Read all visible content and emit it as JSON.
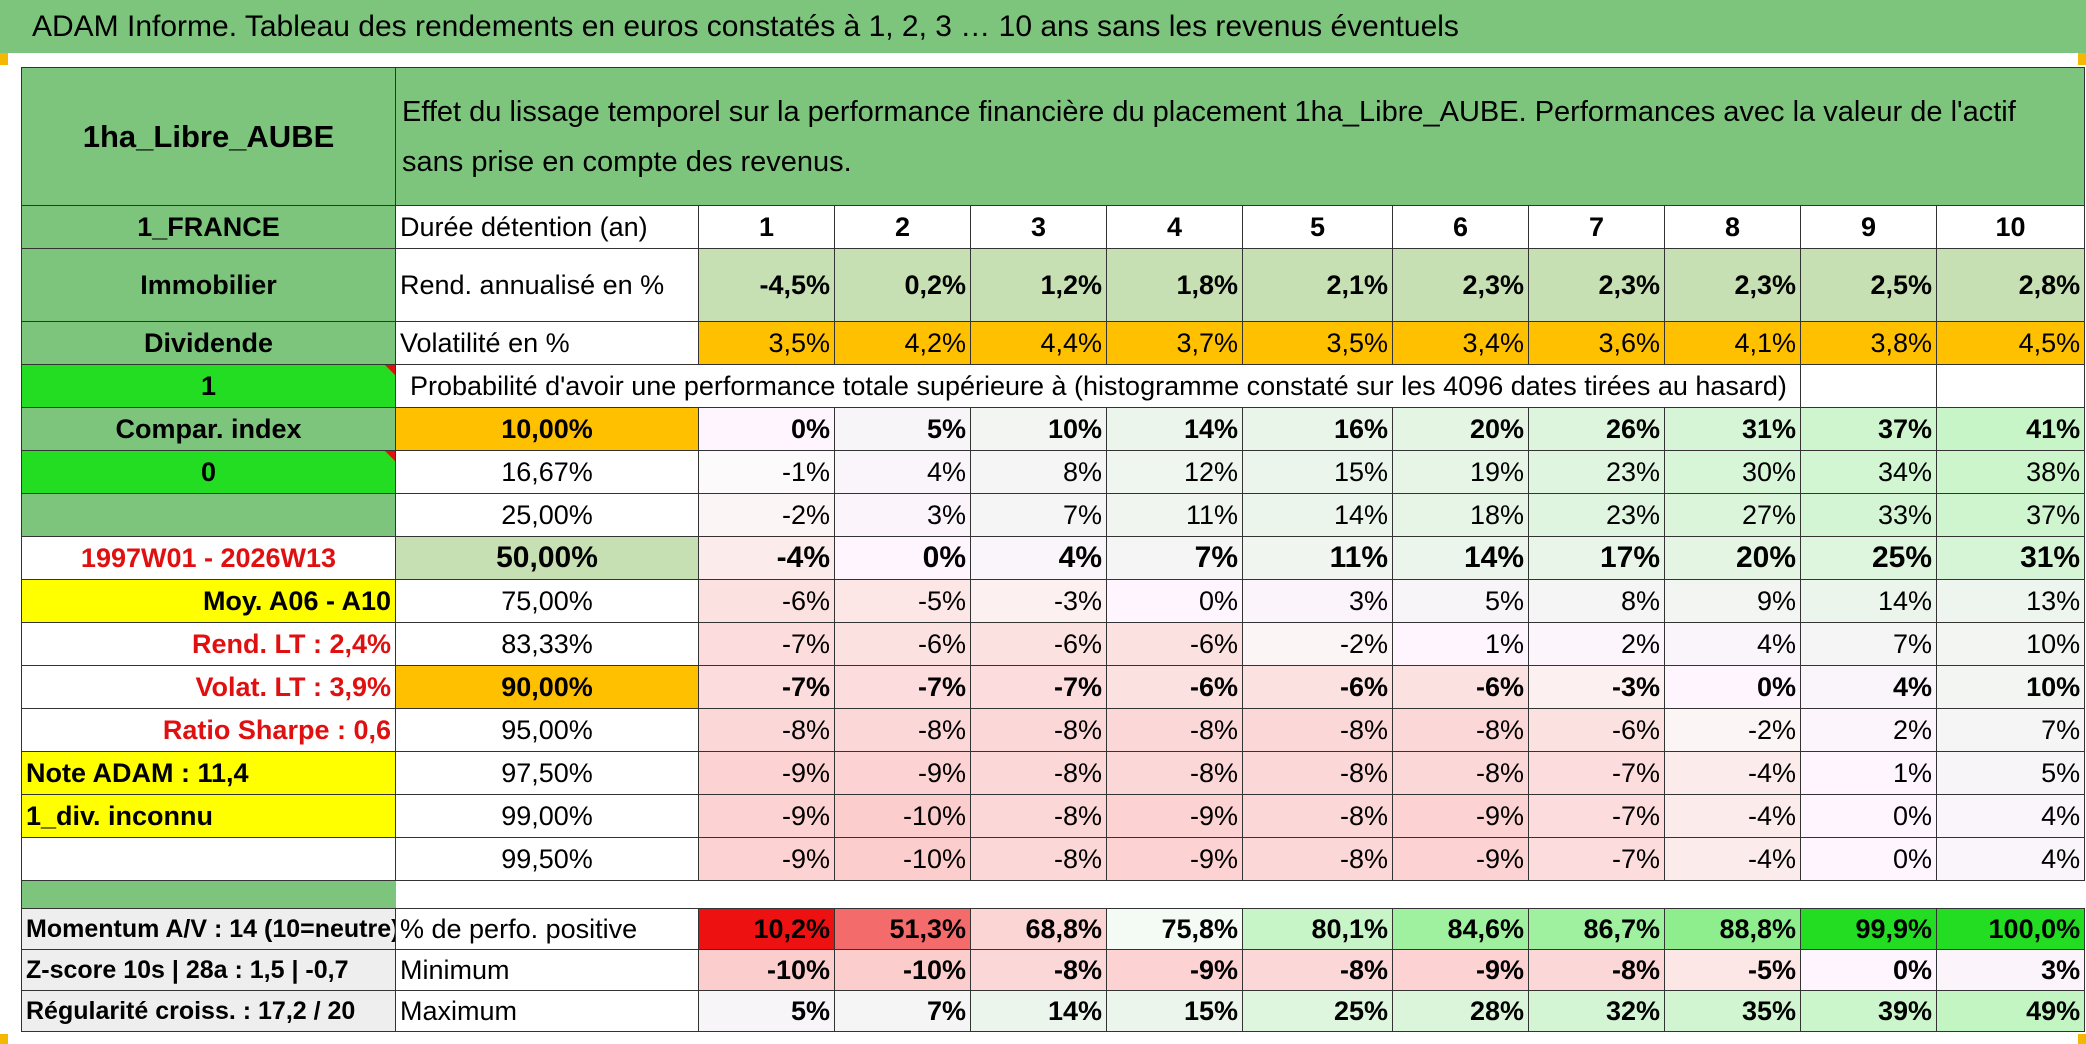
{
  "banner": "ADAM Informe. Tableau des rendements en euros constatés à 1, 2, 3 … 10 ans sans les revenus éventuels",
  "asset_name": "1ha_Libre_AUBE",
  "title": "Effet du lissage temporel sur la performance financière du placement 1ha_Libre_AUBE. Performances avec la valeur de l'actif sans prise en compte des revenus.",
  "left": {
    "country": "1_FRANCE",
    "category": "Immobilier",
    "dividend": "Dividende",
    "flag1": "1",
    "compar": "Compar. index",
    "flag0": "0",
    "period": "1997W01 - 2026W13",
    "moy": "Moy. A06 - A10",
    "rend_lt": "Rend. LT :   2,4%",
    "volat_lt": "Volat. LT :   3,9%",
    "sharpe": "Ratio Sharpe :   0,6",
    "note": "Note ADAM : 11,4",
    "div": "1_div. inconnu",
    "momentum": "Momentum A/V : 14 (10=neutre)",
    "zscore": "Z-score 10s | 28a : 1,5 | -0,7",
    "regularite": "Régularité croiss. : 17,2 / 20"
  },
  "labels": {
    "duration": "Durée détention (an)",
    "rend": "Rend. annualisé en %",
    "volat": "Volatilité en %",
    "proba": "Probabilité d'avoir une performance totale supérieure à (histogramme constaté sur les 4096 dates tirées au hasard)",
    "positive": "% de perfo. positive",
    "minimum": "Minimum",
    "maximum": "Maximum"
  },
  "years": [
    "1",
    "2",
    "3",
    "4",
    "5",
    "6",
    "7",
    "8",
    "9",
    "10"
  ],
  "rend": [
    "-4,5%",
    "0,2%",
    "1,2%",
    "1,8%",
    "2,1%",
    "2,3%",
    "2,3%",
    "2,3%",
    "2,5%",
    "2,8%"
  ],
  "volat": [
    "3,5%",
    "4,2%",
    "4,4%",
    "3,7%",
    "3,5%",
    "3,4%",
    "3,6%",
    "4,1%",
    "3,8%",
    "4,5%"
  ],
  "quantiles": [
    {
      "q": "10,00%",
      "v": [
        "0%",
        "5%",
        "10%",
        "14%",
        "16%",
        "20%",
        "26%",
        "31%",
        "37%",
        "41%"
      ]
    },
    {
      "q": "16,67%",
      "v": [
        "-1%",
        "4%",
        "8%",
        "12%",
        "15%",
        "19%",
        "23%",
        "30%",
        "34%",
        "38%"
      ]
    },
    {
      "q": "25,00%",
      "v": [
        "-2%",
        "3%",
        "7%",
        "11%",
        "14%",
        "18%",
        "23%",
        "27%",
        "33%",
        "37%"
      ]
    },
    {
      "q": "50,00%",
      "v": [
        "-4%",
        "0%",
        "4%",
        "7%",
        "11%",
        "14%",
        "17%",
        "20%",
        "25%",
        "31%"
      ]
    },
    {
      "q": "75,00%",
      "v": [
        "-6%",
        "-5%",
        "-3%",
        "0%",
        "3%",
        "5%",
        "8%",
        "9%",
        "14%",
        "13%"
      ]
    },
    {
      "q": "83,33%",
      "v": [
        "-7%",
        "-6%",
        "-6%",
        "-6%",
        "-2%",
        "1%",
        "2%",
        "4%",
        "7%",
        "10%"
      ]
    },
    {
      "q": "90,00%",
      "v": [
        "-7%",
        "-7%",
        "-7%",
        "-6%",
        "-6%",
        "-6%",
        "-3%",
        "0%",
        "4%",
        "10%"
      ]
    },
    {
      "q": "95,00%",
      "v": [
        "-8%",
        "-8%",
        "-8%",
        "-8%",
        "-8%",
        "-8%",
        "-6%",
        "-2%",
        "2%",
        "7%"
      ]
    },
    {
      "q": "97,50%",
      "v": [
        "-9%",
        "-9%",
        "-8%",
        "-8%",
        "-8%",
        "-8%",
        "-7%",
        "-4%",
        "1%",
        "5%"
      ]
    },
    {
      "q": "99,00%",
      "v": [
        "-9%",
        "-10%",
        "-8%",
        "-9%",
        "-8%",
        "-9%",
        "-7%",
        "-4%",
        "0%",
        "4%"
      ]
    },
    {
      "q": "99,50%",
      "v": [
        "-9%",
        "-10%",
        "-8%",
        "-9%",
        "-8%",
        "-9%",
        "-7%",
        "-4%",
        "0%",
        "4%"
      ]
    }
  ],
  "positive": [
    "10,2%",
    "51,3%",
    "68,8%",
    "75,8%",
    "80,1%",
    "84,6%",
    "86,7%",
    "88,8%",
    "99,9%",
    "100,0%"
  ],
  "minimum": [
    "-10%",
    "-10%",
    "-8%",
    "-9%",
    "-8%",
    "-9%",
    "-8%",
    "-5%",
    "0%",
    "3%"
  ],
  "maximum": [
    "5%",
    "7%",
    "14%",
    "15%",
    "25%",
    "28%",
    "32%",
    "35%",
    "39%",
    "49%"
  ],
  "colors": {
    "header_green": "#7dc57d",
    "light_green": "#c6e0b4",
    "bright_green": "#22dd22",
    "orange": "#ffc000",
    "yellow": "#ffff00",
    "red_text": "#e01010"
  }
}
